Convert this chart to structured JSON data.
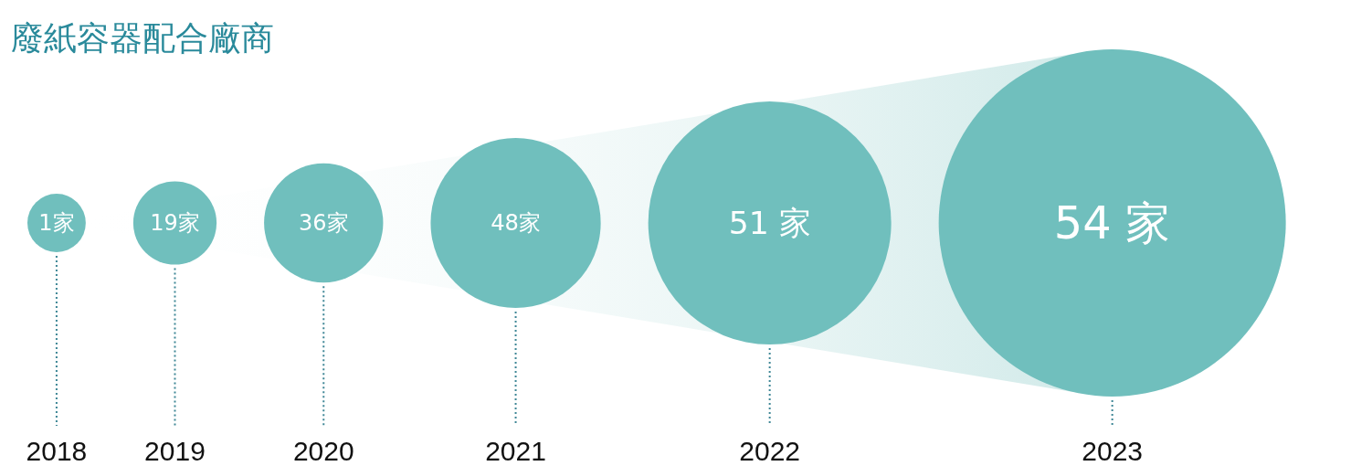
{
  "chart_data": {
    "type": "other",
    "title": "廢紙容器配合廠商",
    "categories": [
      "2018",
      "2019",
      "2020",
      "2021",
      "2022",
      "2023"
    ],
    "values": [
      1,
      19,
      36,
      48,
      51,
      54
    ],
    "value_labels": [
      "1家",
      "19家",
      "36家",
      "48家",
      "51 家",
      "54 家"
    ],
    "color": "#70bfbd"
  }
}
